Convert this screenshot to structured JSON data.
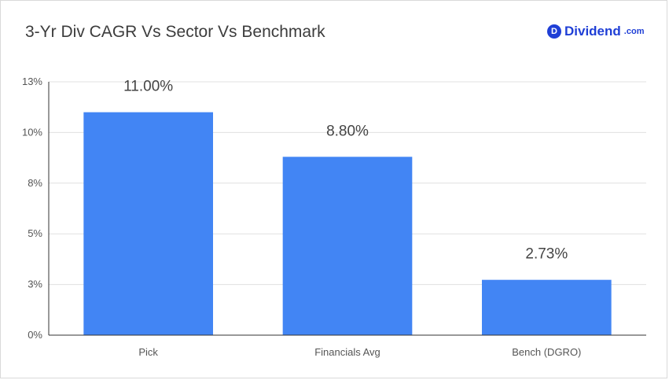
{
  "header": {
    "title": "3-Yr Div CAGR Vs Sector Vs Benchmark",
    "brand_badge": "D",
    "brand_name": "Dividend",
    "brand_suffix": ".com"
  },
  "colors": {
    "bar": "#4285f4",
    "brand": "#1f3fd6",
    "grid": "#e0e0e0",
    "axis": "#333333",
    "tick_text": "#555555",
    "label_text": "#444444"
  },
  "chart_data": {
    "type": "bar",
    "title": "3-Yr Div CAGR Vs Sector Vs Benchmark",
    "xlabel": "",
    "ylabel": "",
    "categories": [
      "Pick",
      "Financials Avg",
      "Bench (DGRO)"
    ],
    "values": [
      11.0,
      8.8,
      2.73
    ],
    "data_labels": [
      "11.00%",
      "8.80%",
      "2.73%"
    ],
    "ylim": [
      0,
      12.5
    ],
    "y_ticks": [
      0,
      2.5,
      5,
      7.5,
      10,
      12.5
    ],
    "y_tick_labels": [
      "0%",
      "3%",
      "5%",
      "8%",
      "10%",
      "13%"
    ],
    "grid": true,
    "legend": "none"
  }
}
